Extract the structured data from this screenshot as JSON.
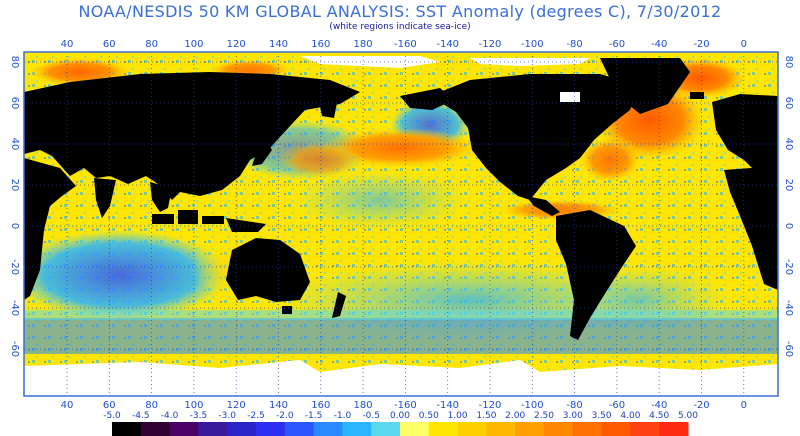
{
  "title": "NOAA/NESDIS 50 KM GLOBAL ANALYSIS: SST Anomaly (degrees C), 7/30/2012",
  "subtitle": "(white regions indicate sea-ice)",
  "lon_ticks": [
    "40",
    "60",
    "80",
    "100",
    "120",
    "140",
    "160",
    "180",
    "-160",
    "-140",
    "-120",
    "-100",
    "-80",
    "-60",
    "-40",
    "-20",
    "0"
  ],
  "lat_ticks": [
    "80",
    "60",
    "40",
    "20",
    "0",
    "-20",
    "-40",
    "-60"
  ],
  "colorbar": {
    "labels": [
      "-5.0",
      "-4.5",
      "-4.0",
      "-3.5",
      "-3.0",
      "-2.5",
      "-2.0",
      "-1.5",
      "-1.0",
      "-0.5",
      "0.00",
      "0.50",
      "1.00",
      "1.50",
      "2.00",
      "2.50",
      "3.00",
      "3.50",
      "4.00",
      "4.50",
      "5.00"
    ],
    "colors": [
      "#000000",
      "#300030",
      "#4a0066",
      "#3a1a9a",
      "#2a24c8",
      "#2e2ef0",
      "#2a55ff",
      "#2a88ff",
      "#2ab4ff",
      "#5ad8f0",
      "#ffff66",
      "#ffe600",
      "#ffd000",
      "#ffb800",
      "#ffa000",
      "#ff8800",
      "#ff7000",
      "#ff5a00",
      "#ff4010",
      "#ff2a10"
    ]
  },
  "colors": {
    "land": "#000000",
    "ice": "#ffffff",
    "frame": "#3a6fd8",
    "grid": "#2040a0"
  }
}
